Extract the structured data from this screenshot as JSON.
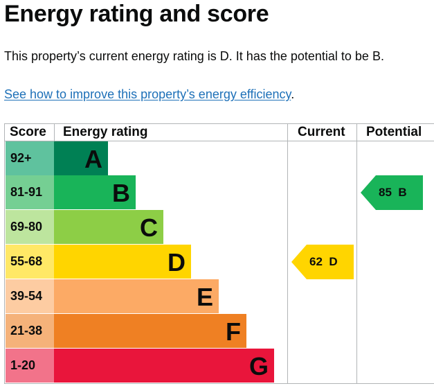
{
  "heading": "Energy rating and score",
  "intro_text": "This property’s current energy rating is D. It has the potential to be B.",
  "link": {
    "text": "See how to improve this property’s energy efficiency",
    "suffix": "."
  },
  "table": {
    "headers": {
      "score": "Score",
      "rating": "Energy rating",
      "current": "Current",
      "potential": "Potential"
    },
    "bands": [
      {
        "score": "92+",
        "letter": "A",
        "band_color": "#008054",
        "score_color": "#5fc29e"
      },
      {
        "score": "81-91",
        "letter": "B",
        "band_color": "#19b459",
        "score_color": "#75cf93"
      },
      {
        "score": "69-80",
        "letter": "C",
        "band_color": "#8dce46",
        "score_color": "#bde59e"
      },
      {
        "score": "55-68",
        "letter": "D",
        "band_color": "#ffd500",
        "score_color": "#ffe866"
      },
      {
        "score": "39-54",
        "letter": "E",
        "band_color": "#fcaa65",
        "score_color": "#fdcca2"
      },
      {
        "score": "21-38",
        "letter": "F",
        "band_color": "#ef8023",
        "score_color": "#f5b27a"
      },
      {
        "score": "1-20",
        "letter": "G",
        "band_color": "#e9153b",
        "score_color": "#f2738a"
      }
    ],
    "current": {
      "value": 62,
      "letter": "D",
      "label": "62  D",
      "color": "#ffd500"
    },
    "potential": {
      "value": 85,
      "letter": "B",
      "label": "85  B",
      "color": "#19b459"
    }
  }
}
